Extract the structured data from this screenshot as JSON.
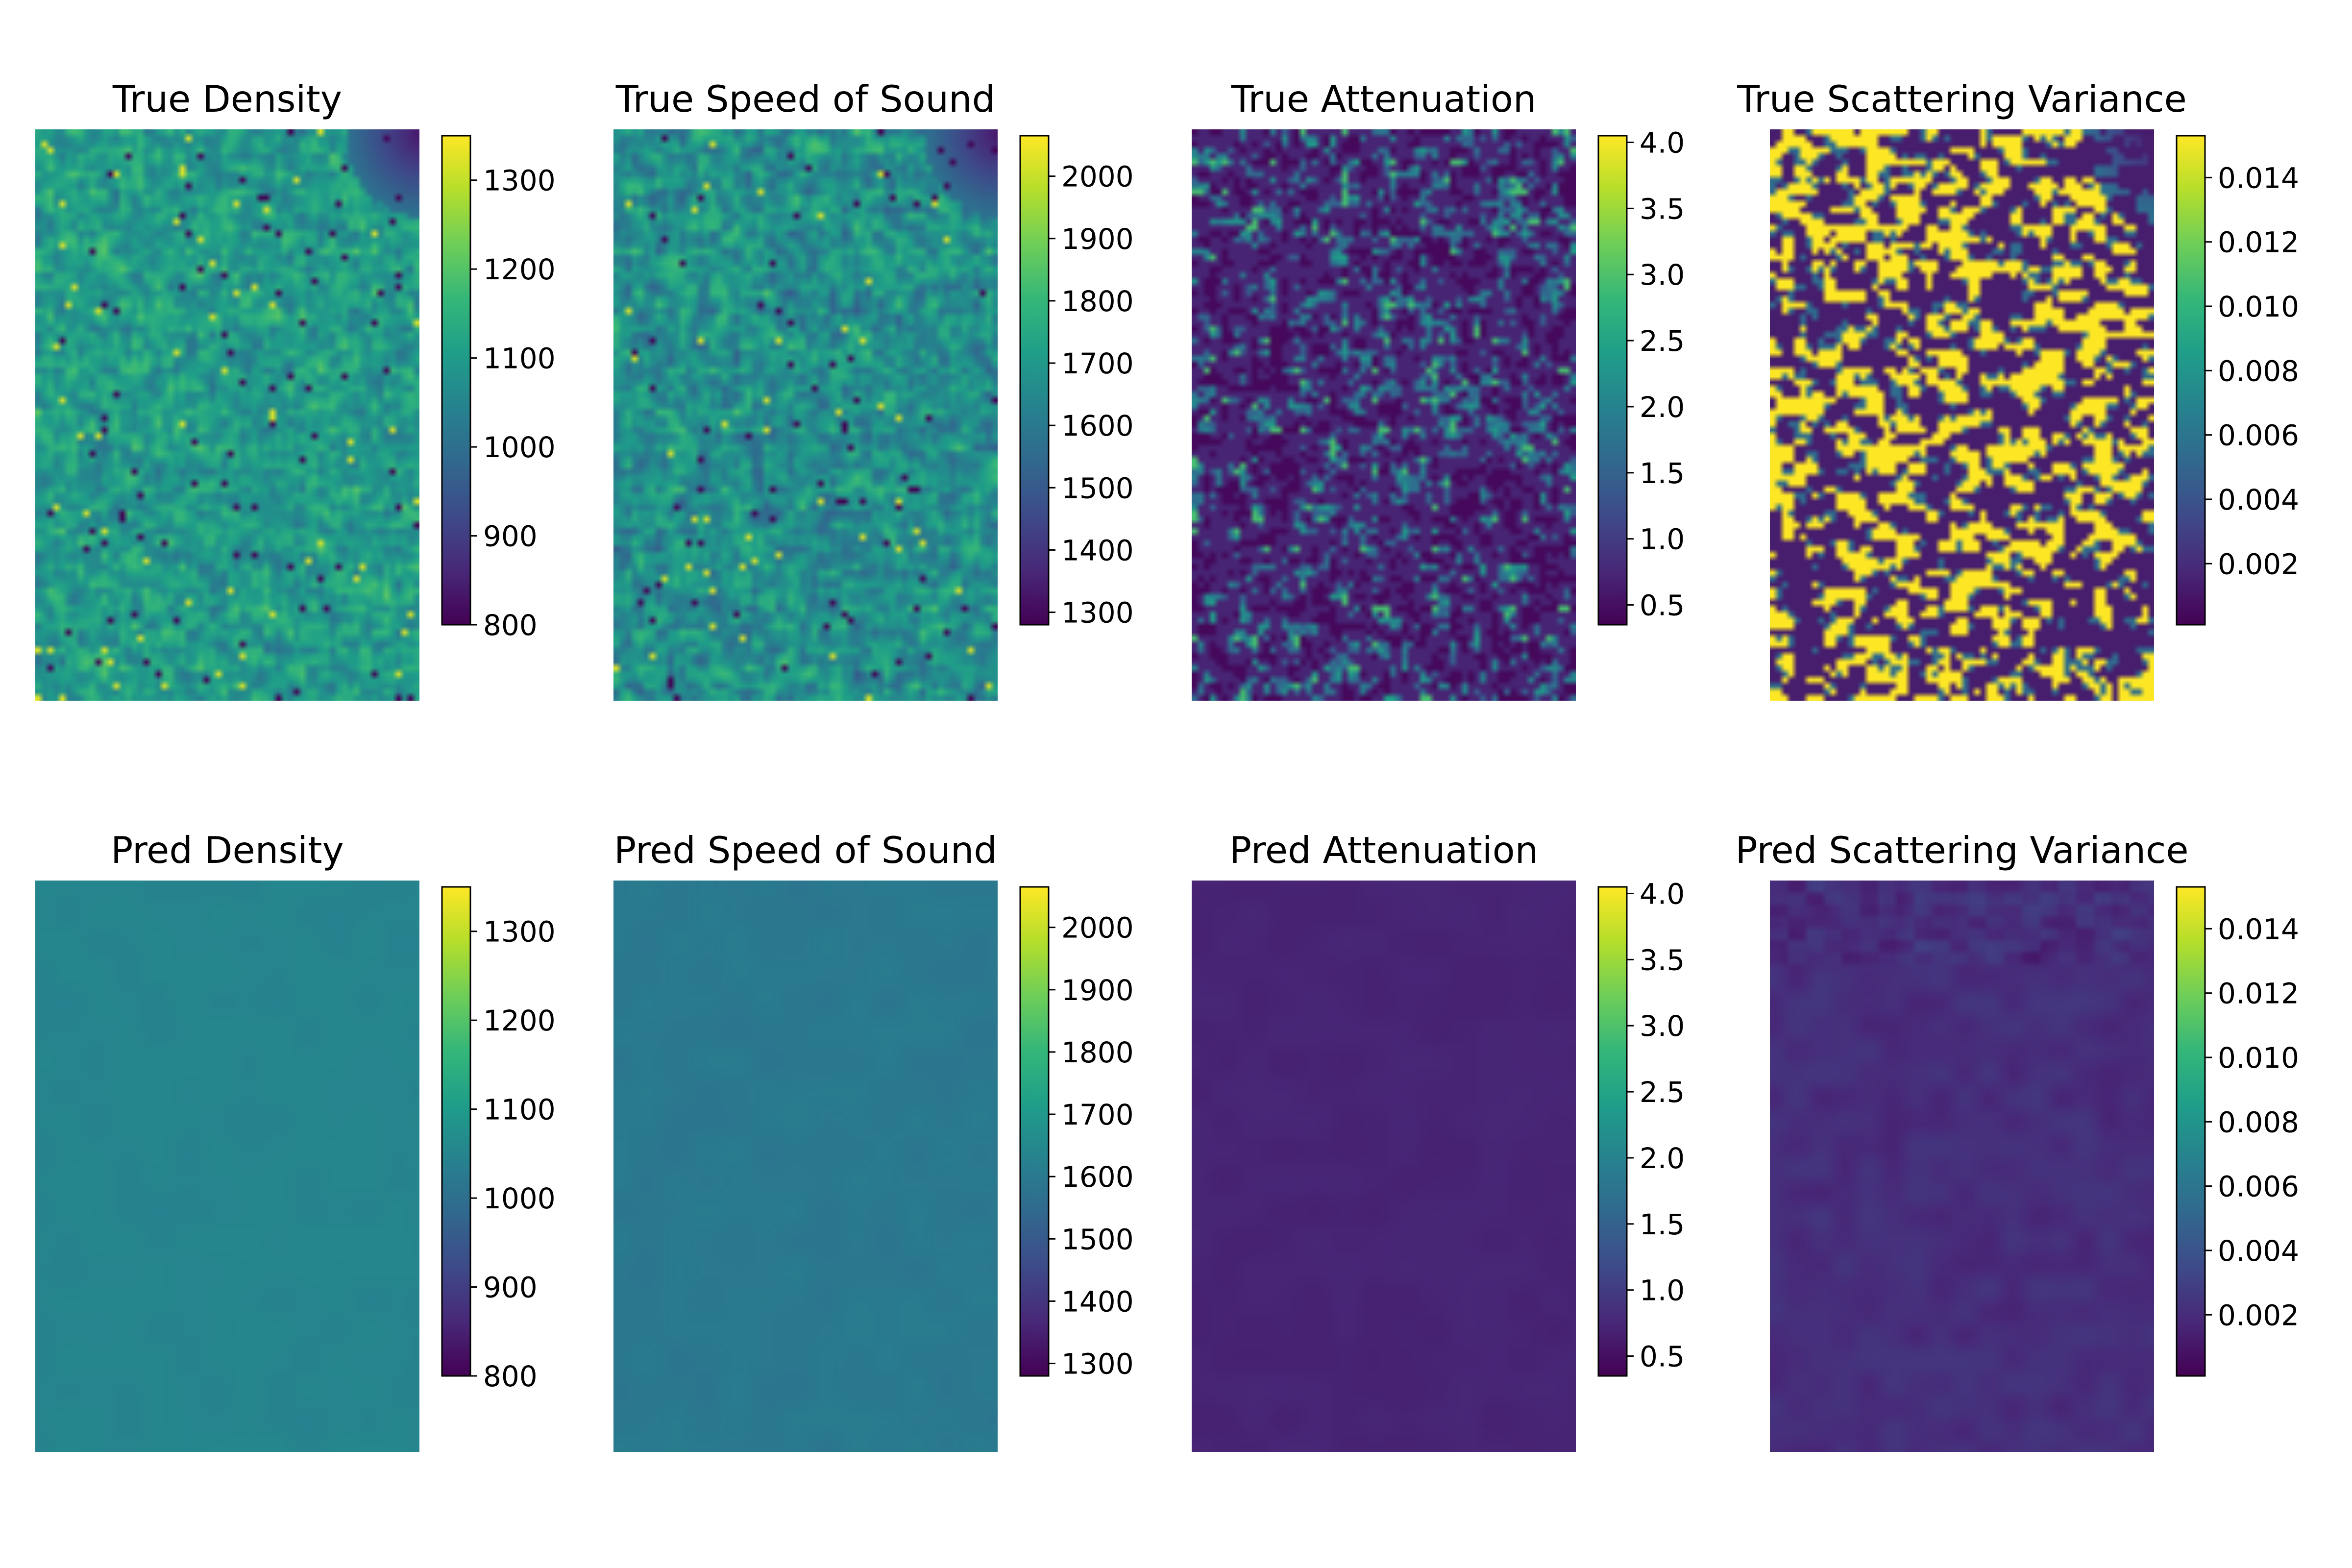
{
  "colors": {
    "colormap": "viridis",
    "colormap_stops": [
      "#440154",
      "#482878",
      "#3e4a89",
      "#31688e",
      "#26828e",
      "#1f9e89",
      "#35b779",
      "#6ece58",
      "#b5de2b",
      "#fde725"
    ]
  },
  "chart_data": [
    {
      "type": "heatmap",
      "title": "True Density",
      "colorbar_range": [
        800,
        1350
      ],
      "colorbar_ticks": [
        800,
        900,
        1000,
        1100,
        1200,
        1300
      ],
      "colorbar_tick_labels": [
        "800",
        "900",
        "1000",
        "1100",
        "1200",
        "1300"
      ],
      "field": "noisy",
      "field_mean_fraction": 0.55,
      "field_spread_fraction": 0.22,
      "dark_corner": "top-right"
    },
    {
      "type": "heatmap",
      "title": "True Speed of Sound",
      "colorbar_range": [
        1280,
        2065
      ],
      "colorbar_ticks": [
        1300,
        1400,
        1500,
        1600,
        1700,
        1800,
        1900,
        2000
      ],
      "colorbar_tick_labels": [
        "1300",
        "1400",
        "1500",
        "1600",
        "1700",
        "1800",
        "1900",
        "2000"
      ],
      "field": "noisy",
      "field_mean_fraction": 0.5,
      "field_spread_fraction": 0.25,
      "dark_corner": "top-right"
    },
    {
      "type": "heatmap",
      "title": "True Attenuation",
      "colorbar_range": [
        0.35,
        4.05
      ],
      "colorbar_ticks": [
        0.5,
        1.0,
        1.5,
        2.0,
        2.5,
        3.0,
        3.5,
        4.0
      ],
      "colorbar_tick_labels": [
        "0.5",
        "1.0",
        "1.5",
        "2.0",
        "2.5",
        "3.0",
        "3.5",
        "4.0"
      ],
      "field": "contour-spots",
      "field_mean_fraction": 0.12,
      "field_spread_fraction": 0.1
    },
    {
      "type": "heatmap",
      "title": "True Scattering Variance",
      "colorbar_range": [
        0.0001,
        0.0153
      ],
      "colorbar_ticks": [
        0.002,
        0.004,
        0.006,
        0.008,
        0.01,
        0.012,
        0.014
      ],
      "colorbar_tick_labels": [
        "0.002",
        "0.004",
        "0.006",
        "0.008",
        "0.010",
        "0.012",
        "0.014"
      ],
      "field": "binary-blobs",
      "field_mean_fraction": 0.45,
      "field_spread_fraction": 0.5,
      "dark_corner": "top-right"
    },
    {
      "type": "heatmap",
      "title": "Pred Density",
      "colorbar_range": [
        800,
        1350
      ],
      "colorbar_ticks": [
        800,
        900,
        1000,
        1100,
        1200,
        1300
      ],
      "colorbar_tick_labels": [
        "800",
        "900",
        "1000",
        "1100",
        "1200",
        "1300"
      ],
      "field": "smooth",
      "field_mean_fraction": 0.455,
      "field_spread_fraction": 0.01
    },
    {
      "type": "heatmap",
      "title": "Pred Speed of Sound",
      "colorbar_range": [
        1280,
        2065
      ],
      "colorbar_ticks": [
        1300,
        1400,
        1500,
        1600,
        1700,
        1800,
        1900,
        2000
      ],
      "colorbar_tick_labels": [
        "1300",
        "1400",
        "1500",
        "1600",
        "1700",
        "1800",
        "1900",
        "2000"
      ],
      "field": "smooth",
      "field_mean_fraction": 0.405,
      "field_spread_fraction": 0.015
    },
    {
      "type": "heatmap",
      "title": "Pred Attenuation",
      "colorbar_range": [
        0.35,
        4.05
      ],
      "colorbar_ticks": [
        0.5,
        1.0,
        1.5,
        2.0,
        2.5,
        3.0,
        3.5,
        4.0
      ],
      "colorbar_tick_labels": [
        "0.5",
        "1.0",
        "1.5",
        "2.0",
        "2.5",
        "3.0",
        "3.5",
        "4.0"
      ],
      "field": "smooth",
      "field_mean_fraction": 0.1,
      "field_spread_fraction": 0.01
    },
    {
      "type": "heatmap",
      "title": "Pred Scattering Variance",
      "colorbar_range": [
        0.0001,
        0.0153
      ],
      "colorbar_ticks": [
        0.002,
        0.004,
        0.006,
        0.008,
        0.01,
        0.012,
        0.014
      ],
      "colorbar_tick_labels": [
        "0.002",
        "0.004",
        "0.006",
        "0.008",
        "0.010",
        "0.012",
        "0.014"
      ],
      "field": "smooth-top-band",
      "field_mean_fraction": 0.13,
      "field_spread_fraction": 0.03
    }
  ]
}
